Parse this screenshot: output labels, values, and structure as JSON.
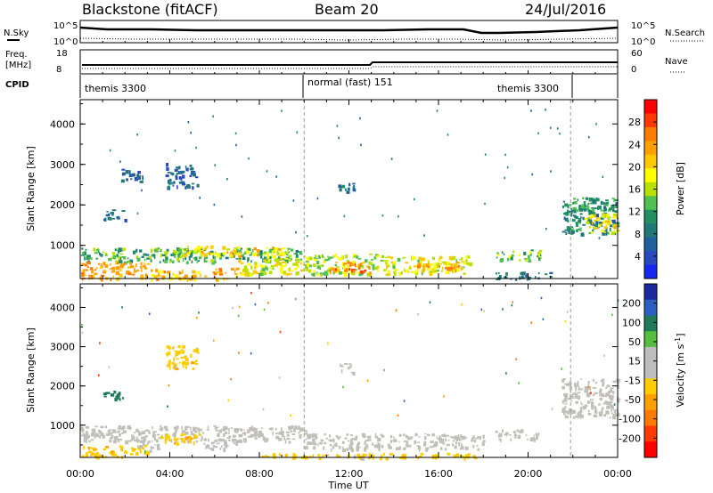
{
  "header": {
    "station": "Blackstone (fitACF)",
    "beam": "Beam 20",
    "date": "24/Jul/2016"
  },
  "summary": {
    "nsky_label": "N.Sky",
    "nsearch_label": "N.Search",
    "left_tick_top": "10^5",
    "left_tick_bottom": "10^0",
    "right_tick_top": "10^5",
    "right_tick_bottom": "10^0",
    "freq_label_line1": "Freq.",
    "freq_label_line2": "[MHz]",
    "freq_tick_top": "18",
    "freq_tick_bottom": "8",
    "nave_label": "Nave",
    "nave_tick_top": "60",
    "nave_tick_bottom": "0",
    "cpid_label": "CPID",
    "modes": [
      "themis 3300",
      "normal (fast) 151",
      "themis 3300"
    ]
  },
  "axes": {
    "ylabel": "Slant Range [km]",
    "xlabel": "Time UT",
    "xticks": [
      "00:00",
      "04:00",
      "08:00",
      "12:00",
      "16:00",
      "20:00",
      "00:00"
    ],
    "yticks": [
      "1000",
      "2000",
      "3000",
      "4000"
    ]
  },
  "power_scale": {
    "label": "Power [dB]",
    "ticks": [
      "28",
      "24",
      "20",
      "16",
      "12",
      "8",
      "4"
    ],
    "colors": [
      "#ff0000",
      "#ff3a00",
      "#ff7a00",
      "#ffa000",
      "#ffc800",
      "#ffff00",
      "#b8e000",
      "#50c050",
      "#209060",
      "#207878",
      "#2060a0",
      "#2848c0",
      "#1428f0"
    ]
  },
  "velocity_scale": {
    "label": "Velocity [m s^-1]",
    "ticks": [
      "200",
      "100",
      "50",
      "15",
      "-15",
      "-50",
      "-100",
      "-200"
    ],
    "colors": [
      "#1a2a9e",
      "#2a60c0",
      "#1f7a5a",
      "#55c040",
      "#bdbdbd",
      "#bdbdbd",
      "#ffcc00",
      "#ffa000",
      "#ff7a00",
      "#ff3a00",
      "#ff0000"
    ]
  },
  "colors": {
    "ground_scatter": "#c0c0b8",
    "axis": "#000000"
  },
  "chart_data": [
    {
      "type": "heatmap",
      "panel": "power",
      "xlabel": "Time UT",
      "ylabel": "Slant Range [km]",
      "colorbar_label": "Power [dB]",
      "xlim": [
        0,
        24
      ],
      "ylim": [
        180,
        4600
      ],
      "regions": [
        {
          "t": [
            0.0,
            10.0
          ],
          "r": [
            600,
            950
          ],
          "level": 12
        },
        {
          "t": [
            0.0,
            3.0
          ],
          "r": [
            180,
            600
          ],
          "level": 24
        },
        {
          "t": [
            3.0,
            7.0
          ],
          "r": [
            180,
            450
          ],
          "level": 22
        },
        {
          "t": [
            7.0,
            10.0
          ],
          "r": [
            300,
            700
          ],
          "level": 18
        },
        {
          "t": [
            4.5,
            9.0
          ],
          "r": [
            750,
            1000
          ],
          "level": 20
        },
        {
          "t": [
            10.0,
            13.5
          ],
          "r": [
            300,
            800
          ],
          "level": 16
        },
        {
          "t": [
            11.0,
            13.0
          ],
          "r": [
            350,
            600
          ],
          "level": 26
        },
        {
          "t": [
            13.5,
            17.5
          ],
          "r": [
            300,
            750
          ],
          "level": 18
        },
        {
          "t": [
            15.0,
            17.0
          ],
          "r": [
            400,
            600
          ],
          "level": 24
        },
        {
          "t": [
            18.5,
            20.5
          ],
          "r": [
            650,
            900
          ],
          "level": 14
        },
        {
          "t": [
            18.5,
            21.0
          ],
          "r": [
            180,
            350
          ],
          "level": 8
        },
        {
          "t": [
            21.5,
            24.0
          ],
          "r": [
            1300,
            2200
          ],
          "level": 10
        },
        {
          "t": [
            22.5,
            24.0
          ],
          "r": [
            1300,
            1800
          ],
          "level": 20
        },
        {
          "t": [
            1.0,
            2.0
          ],
          "r": [
            1650,
            1900
          ],
          "level": 6
        },
        {
          "t": [
            3.8,
            5.2
          ],
          "r": [
            2450,
            3050
          ],
          "level": 6
        },
        {
          "t": [
            1.8,
            2.8
          ],
          "r": [
            2600,
            2900
          ],
          "level": 5
        },
        {
          "t": [
            11.5,
            12.2
          ],
          "r": [
            2350,
            2600
          ],
          "level": 8
        }
      ]
    },
    {
      "type": "heatmap",
      "panel": "velocity",
      "xlabel": "Time UT",
      "ylabel": "Slant Range [km]",
      "colorbar_label": "Velocity [m s^-1]",
      "xlim": [
        0,
        24
      ],
      "ylim": [
        180,
        4600
      ],
      "regions": [
        {
          "t": [
            0.0,
            10.0
          ],
          "r": [
            600,
            1000
          ],
          "value": 0
        },
        {
          "t": [
            0.0,
            3.0
          ],
          "r": [
            200,
            500
          ],
          "value": -60
        },
        {
          "t": [
            3.5,
            5.5
          ],
          "r": [
            550,
            800
          ],
          "value": -60
        },
        {
          "t": [
            5.5,
            7.0
          ],
          "r": [
            400,
            650
          ],
          "value": 30
        },
        {
          "t": [
            2.5,
            3.5
          ],
          "r": [
            350,
            550
          ],
          "value": 30
        },
        {
          "t": [
            10.0,
            18.0
          ],
          "r": [
            400,
            800
          ],
          "value": 0
        },
        {
          "t": [
            8.0,
            18.0
          ],
          "r": [
            180,
            300
          ],
          "value": -40
        },
        {
          "t": [
            18.5,
            20.5
          ],
          "r": [
            650,
            900
          ],
          "value": 0
        },
        {
          "t": [
            21.5,
            24.0
          ],
          "r": [
            1200,
            2200
          ],
          "value": 0
        },
        {
          "t": [
            1.0,
            2.0
          ],
          "r": [
            1650,
            1900
          ],
          "value": 80
        },
        {
          "t": [
            3.8,
            5.2
          ],
          "r": [
            2450,
            3050
          ],
          "value": -40
        },
        {
          "t": [
            11.5,
            12.2
          ],
          "r": [
            2350,
            2600
          ],
          "value": 0
        }
      ]
    }
  ]
}
